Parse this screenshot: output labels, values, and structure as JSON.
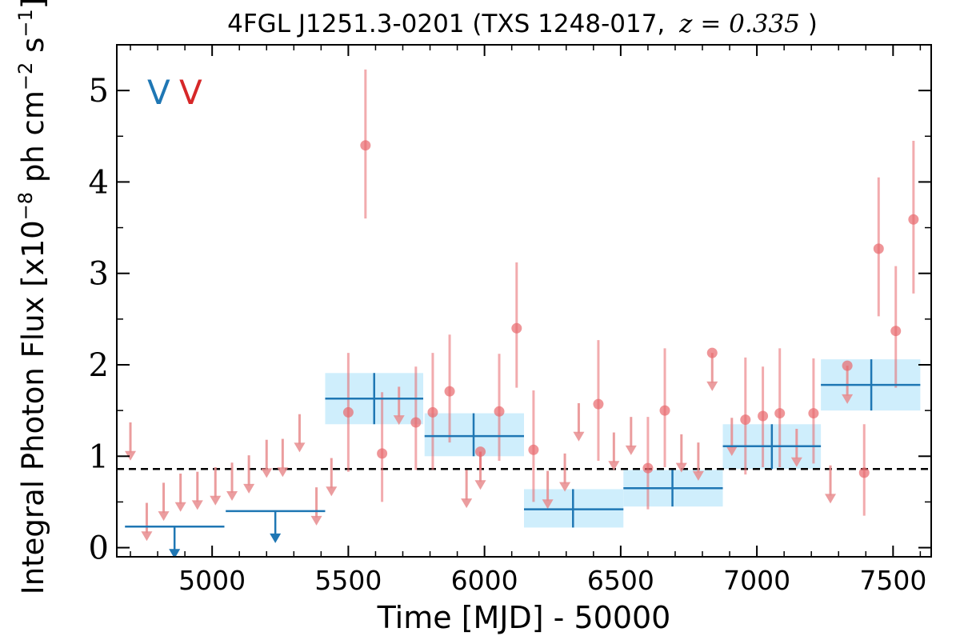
{
  "chart_data": {
    "type": "scatter",
    "title": "4FGL J1251.3-0201 (TXS 1248-017, z = 0.335)",
    "title_parts": {
      "main": "4FGL J1251.3-0201 (TXS 1248-017,",
      "math": "z = 0.335",
      "close": ")"
    },
    "xlabel": "Time [MJD] - 50000",
    "ylabel": "Integral Photon Flux [x10",
    "ylabel_exp1": "−8",
    "ylabel_mid": " ph cm",
    "ylabel_exp2": "−2",
    "ylabel_mid2": " s",
    "ylabel_exp3": "−1",
    "ylabel_close": "]",
    "xlim": [
      4650,
      7640
    ],
    "ylim": [
      -0.1,
      5.5
    ],
    "xticks": [
      5000,
      5500,
      6000,
      6500,
      7000,
      7500
    ],
    "yticks": [
      0,
      1,
      2,
      3,
      4,
      5
    ],
    "xtick_labels": [
      "5000",
      "5500",
      "6000",
      "6500",
      "7000",
      "7500"
    ],
    "ytick_labels": [
      "0",
      "1",
      "2",
      "3",
      "4",
      "5"
    ],
    "legend": {
      "placement": "top-left",
      "symbols": [
        "V",
        "V"
      ],
      "colors": [
        "#1f77b4",
        "#d62728"
      ]
    },
    "mean_flux": 0.86,
    "colors": {
      "detection": "#e8686c",
      "upper_limit": "#e88c8e",
      "bin": "#1f77b4",
      "bin_band": "#cfeefc",
      "mean_line": "#000000"
    },
    "series": [
      {
        "kind": "short-bin-detections",
        "points": [
          {
            "x": 5500,
            "y": 1.48,
            "ylo": 0.83,
            "yhi": 2.13
          },
          {
            "x": 5563,
            "y": 4.4,
            "ylo": 3.6,
            "yhi": 5.23
          },
          {
            "x": 5624,
            "y": 1.03,
            "ylo": 0.5,
            "yhi": 1.7
          },
          {
            "x": 5748,
            "y": 1.37,
            "ylo": 0.85,
            "yhi": 1.98
          },
          {
            "x": 5810,
            "y": 1.48,
            "ylo": 0.85,
            "yhi": 2.13
          },
          {
            "x": 5872,
            "y": 1.71,
            "ylo": 1.15,
            "yhi": 2.33
          },
          {
            "x": 5985,
            "y": 1.05,
            "ylo": 0.85,
            "yhi": 1.05
          },
          {
            "x": 6054,
            "y": 1.49,
            "ylo": 0.95,
            "yhi": 2.12
          },
          {
            "x": 6118,
            "y": 2.4,
            "ylo": 1.75,
            "yhi": 3.12
          },
          {
            "x": 6180,
            "y": 1.07,
            "ylo": 0.5,
            "yhi": 1.72
          },
          {
            "x": 6418,
            "y": 1.57,
            "ylo": 0.95,
            "yhi": 2.27
          },
          {
            "x": 6600,
            "y": 0.87,
            "ylo": 0.42,
            "yhi": 1.43
          },
          {
            "x": 6662,
            "y": 1.5,
            "ylo": 0.88,
            "yhi": 2.18
          },
          {
            "x": 6836,
            "y": 2.13,
            "ylo": 2.13,
            "yhi": 2.13
          },
          {
            "x": 6958,
            "y": 1.4,
            "ylo": 0.8,
            "yhi": 2.08
          },
          {
            "x": 7022,
            "y": 1.44,
            "ylo": 0.88,
            "yhi": 1.98
          },
          {
            "x": 7084,
            "y": 1.47,
            "ylo": 0.88,
            "yhi": 2.18
          },
          {
            "x": 7208,
            "y": 1.47,
            "ylo": 0.92,
            "yhi": 2.07
          },
          {
            "x": 7332,
            "y": 1.99,
            "ylo": 1.99,
            "yhi": 1.99
          },
          {
            "x": 7394,
            "y": 0.82,
            "ylo": 0.35,
            "yhi": 1.35
          },
          {
            "x": 7447,
            "y": 3.27,
            "ylo": 2.53,
            "yhi": 4.05
          },
          {
            "x": 7510,
            "y": 2.37,
            "ylo": 1.75,
            "yhi": 3.08
          },
          {
            "x": 7575,
            "y": 3.59,
            "ylo": 2.78,
            "yhi": 4.45
          }
        ]
      },
      {
        "kind": "short-bin-upper-limits",
        "points": [
          {
            "x": 4700,
            "y": 1.37
          },
          {
            "x": 4760,
            "y": 0.49
          },
          {
            "x": 4822,
            "y": 0.71
          },
          {
            "x": 4884,
            "y": 0.81
          },
          {
            "x": 4946,
            "y": 0.83
          },
          {
            "x": 5012,
            "y": 0.88
          },
          {
            "x": 5073,
            "y": 0.93
          },
          {
            "x": 5135,
            "y": 1.01
          },
          {
            "x": 5200,
            "y": 1.18
          },
          {
            "x": 5259,
            "y": 1.19
          },
          {
            "x": 5321,
            "y": 1.46
          },
          {
            "x": 5383,
            "y": 0.66
          },
          {
            "x": 5438,
            "y": 0.98
          },
          {
            "x": 5686,
            "y": 1.76
          },
          {
            "x": 5934,
            "y": 0.85
          },
          {
            "x": 5985,
            "y": 1.05
          },
          {
            "x": 6232,
            "y": 0.84
          },
          {
            "x": 6295,
            "y": 1.03
          },
          {
            "x": 6346,
            "y": 1.58
          },
          {
            "x": 6475,
            "y": 1.26
          },
          {
            "x": 6538,
            "y": 1.43
          },
          {
            "x": 6723,
            "y": 1.24
          },
          {
            "x": 6785,
            "y": 1.15
          },
          {
            "x": 6836,
            "y": 2.13
          },
          {
            "x": 6908,
            "y": 1.42
          },
          {
            "x": 7146,
            "y": 1.3
          },
          {
            "x": 7270,
            "y": 0.9
          },
          {
            "x": 7332,
            "y": 1.99
          }
        ]
      },
      {
        "kind": "long-bin-detections",
        "bins": [
          {
            "x0": 5415,
            "x1": 5775,
            "xc": 5595,
            "y": 1.63,
            "ylo": 1.35,
            "yhi": 1.91
          },
          {
            "x0": 5780,
            "x1": 6145,
            "xc": 5960,
            "y": 1.22,
            "ylo": 1.0,
            "yhi": 1.47
          },
          {
            "x0": 6145,
            "x1": 6510,
            "xc": 6325,
            "y": 0.42,
            "ylo": 0.22,
            "yhi": 0.64
          },
          {
            "x0": 6510,
            "x1": 6875,
            "xc": 6690,
            "y": 0.65,
            "ylo": 0.45,
            "yhi": 0.85
          },
          {
            "x0": 6875,
            "x1": 7235,
            "xc": 7055,
            "y": 1.11,
            "ylo": 0.86,
            "yhi": 1.35
          },
          {
            "x0": 7235,
            "x1": 7600,
            "xc": 7420,
            "y": 1.78,
            "ylo": 1.5,
            "yhi": 2.06
          }
        ]
      },
      {
        "kind": "long-bin-upper-limits",
        "bins": [
          {
            "x0": 4680,
            "x1": 5045,
            "xc": 4862,
            "y": 0.23
          },
          {
            "x0": 5050,
            "x1": 5415,
            "xc": 5232,
            "y": 0.4
          }
        ]
      }
    ]
  }
}
